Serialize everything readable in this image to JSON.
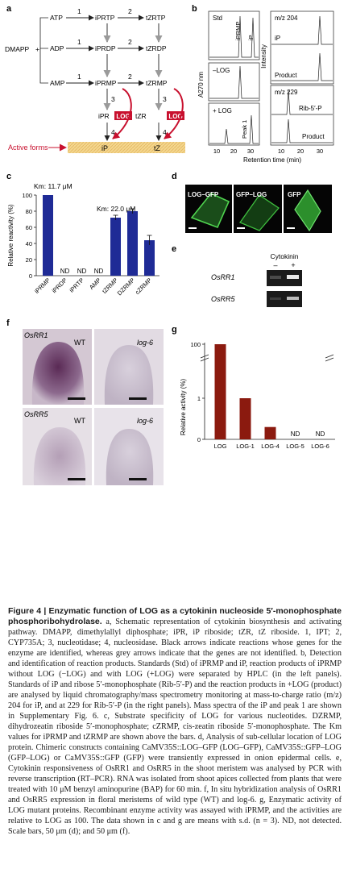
{
  "colors": {
    "log_red": "#c8102e",
    "bar_blue": "#1f2b96",
    "bar_red": "#8b1a0f",
    "active_band": "#f2d48f",
    "panel_d_bg": "#050505",
    "cell_green": "#3dbd3d",
    "gel_bg": "#1b1b1b",
    "grey_arrow": "#9a9a9a"
  },
  "panel_a": {
    "label": "a",
    "nodes": {
      "atp": "ATP",
      "adp": "ADP",
      "amp": "AMP",
      "dmapp": "DMAPP",
      "iprtp": "iPRTP",
      "tzrtp": "tZRTP",
      "iprdp": "iPRDP",
      "tzrdp": "tZRDP",
      "iprmp": "iPRMP",
      "tzrmp": "tZRMP",
      "ipr": "iPR",
      "tzr": "tZR",
      "ip": "iP",
      "tz": "tZ"
    },
    "arrow_nums": {
      "n1": "1",
      "n2": "2",
      "n3": "3",
      "n4": "4"
    },
    "log_label": "LOG",
    "active_forms": "Active forms"
  },
  "panel_b": {
    "label": "b",
    "left_std": "Std",
    "left_iprmp": "iPRMP",
    "left_ip": "iP",
    "left_minus_log": "–LOG",
    "left_plus_log": "+ LOG",
    "left_peak1": "Peak 1",
    "ylabel_left": "A270 nm",
    "ylabel_right": "Intensity",
    "right_mz204": "m/z 204",
    "right_ip": "iP",
    "right_product1": "Product",
    "right_mz229": "m/z 229",
    "right_rib": "Rib-5′-P",
    "right_product2": "Product",
    "ticks": [
      "10",
      "20",
      "30"
    ],
    "xlabel": "Retention time (min)"
  },
  "panel_c": {
    "label": "c",
    "km1": "Km: 11.7 μM",
    "km2": "Km: 22.0 μM",
    "ylabel": "Relative reactivity (%)",
    "yticks": [
      "0",
      "20",
      "40",
      "60",
      "80",
      "100"
    ],
    "nd": "ND"
  },
  "chart_data": [
    {
      "type": "bar",
      "categories": [
        "iPRMP",
        "iPRDP",
        "iPRTP",
        "AMP",
        "tZRMP",
        "DZRMP",
        "cZRMP"
      ],
      "values": [
        100,
        null,
        null,
        null,
        72,
        80,
        44
      ],
      "errors": [
        0,
        null,
        null,
        null,
        3,
        3,
        6
      ],
      "annotations": [
        "Km: 11.7 μM",
        "ND",
        "ND",
        "ND",
        "Km: 22.0 μM",
        "",
        ""
      ],
      "xlabel": "",
      "ylabel": "Relative reactivity (%)",
      "ylim": [
        0,
        100
      ],
      "grid": false
    },
    {
      "type": "bar",
      "categories": [
        "LOG",
        "LOG-1",
        "LOG-4",
        "LOG-5",
        "LOG-6"
      ],
      "values": [
        100,
        1.0,
        0.3,
        null,
        null
      ],
      "annotations": [
        "",
        "",
        "",
        "ND",
        "ND"
      ],
      "xlabel": "",
      "ylabel": "Relative activity (%)",
      "yticks": [
        "0",
        "1",
        "100"
      ],
      "axis_break": true,
      "grid": false
    }
  ],
  "panel_d": {
    "label": "d",
    "log_gfp": "LOG–GFP",
    "gfp_log": "GFP–LOG",
    "gfp": "GFP"
  },
  "panel_e": {
    "label": "e",
    "title": "Cytokinin",
    "minus": "–",
    "plus": "+",
    "osrr1": "OsRR1",
    "osrr5": "OsRR5"
  },
  "panel_f": {
    "label": "f",
    "osrr1": "OsRR1",
    "osrr5": "OsRR5",
    "wt": "WT",
    "log6": "log-6"
  },
  "panel_g": {
    "label": "g",
    "ylabel": "Relative activity (%)",
    "yticks": [
      "0",
      "1",
      "100"
    ],
    "nd": "ND"
  },
  "caption": {
    "title": "Figure 4 | Enzymatic function of LOG as a cytokinin nucleoside 5′-monophosphate phosphoribohydrolase.",
    "body": " a, Schematic representation of cytokinin biosynthesis and activating pathway. DMAPP, dimethylallyl diphosphate; iPR, iP riboside; tZR, tZ riboside. 1, IPT; 2, CYP735A; 3, nucleotidase; 4, nucleosidase. Black arrows indicate reactions whose genes for the enzyme are identified, whereas grey arrows indicate that the genes are not identified. b, Detection and identification of reaction products. Standards (Std) of iPRMP and iP, reaction products of iPRMP without LOG (−LOG) and with LOG (+LOG) were separated by HPLC (in the left panels). Standards of iP and ribose 5′-monophosphate (Rib-5′-P) and the reaction products in +LOG (product) are analysed by liquid chromatography/mass spectrometry monitoring at mass-to-charge ratio (m/z) 204 for iP, and at 229 for Rib-5′-P (in the right panels). Mass spectra of the iP and peak 1 are shown in Supplementary Fig. 6. c, Substrate specificity of LOG for various nucleotides. DZRMP, dihydrozeatin riboside 5′-monophosphate; cZRMP, cis-zeatin riboside 5′-monophosphate. The Km values for iPRMP and tZRMP are shown above the bars. d, Analysis of sub-cellular location of LOG protein. Chimeric constructs containing CaMV35S::LOG–GFP (LOG–GFP), CaMV35S::GFP–LOG (GFP–LOG) or CaMV35S::GFP (GFP) were transiently expressed in onion epidermal cells. e, Cytokinin responsiveness of OsRR1 and OsRR5 in the shoot meristem was analysed by PCR with reverse transcription (RT–PCR). RNA was isolated from shoot apices collected from plants that were treated with 10 μM benzyl aminopurine (BAP) for 60 min. f, In situ hybridization analysis of OsRR1 and OsRR5 expression in floral meristems of wild type (WT) and log-6. g, Enzymatic activity of LOG mutant proteins. Recombinant enzyme activity was assayed with iPRMP, and the activities are relative to LOG as 100. The data shown in c and g are means with s.d. (n = 3). ND, not detected. Scale bars, 50 μm (d); and 50 μm (f)."
  }
}
